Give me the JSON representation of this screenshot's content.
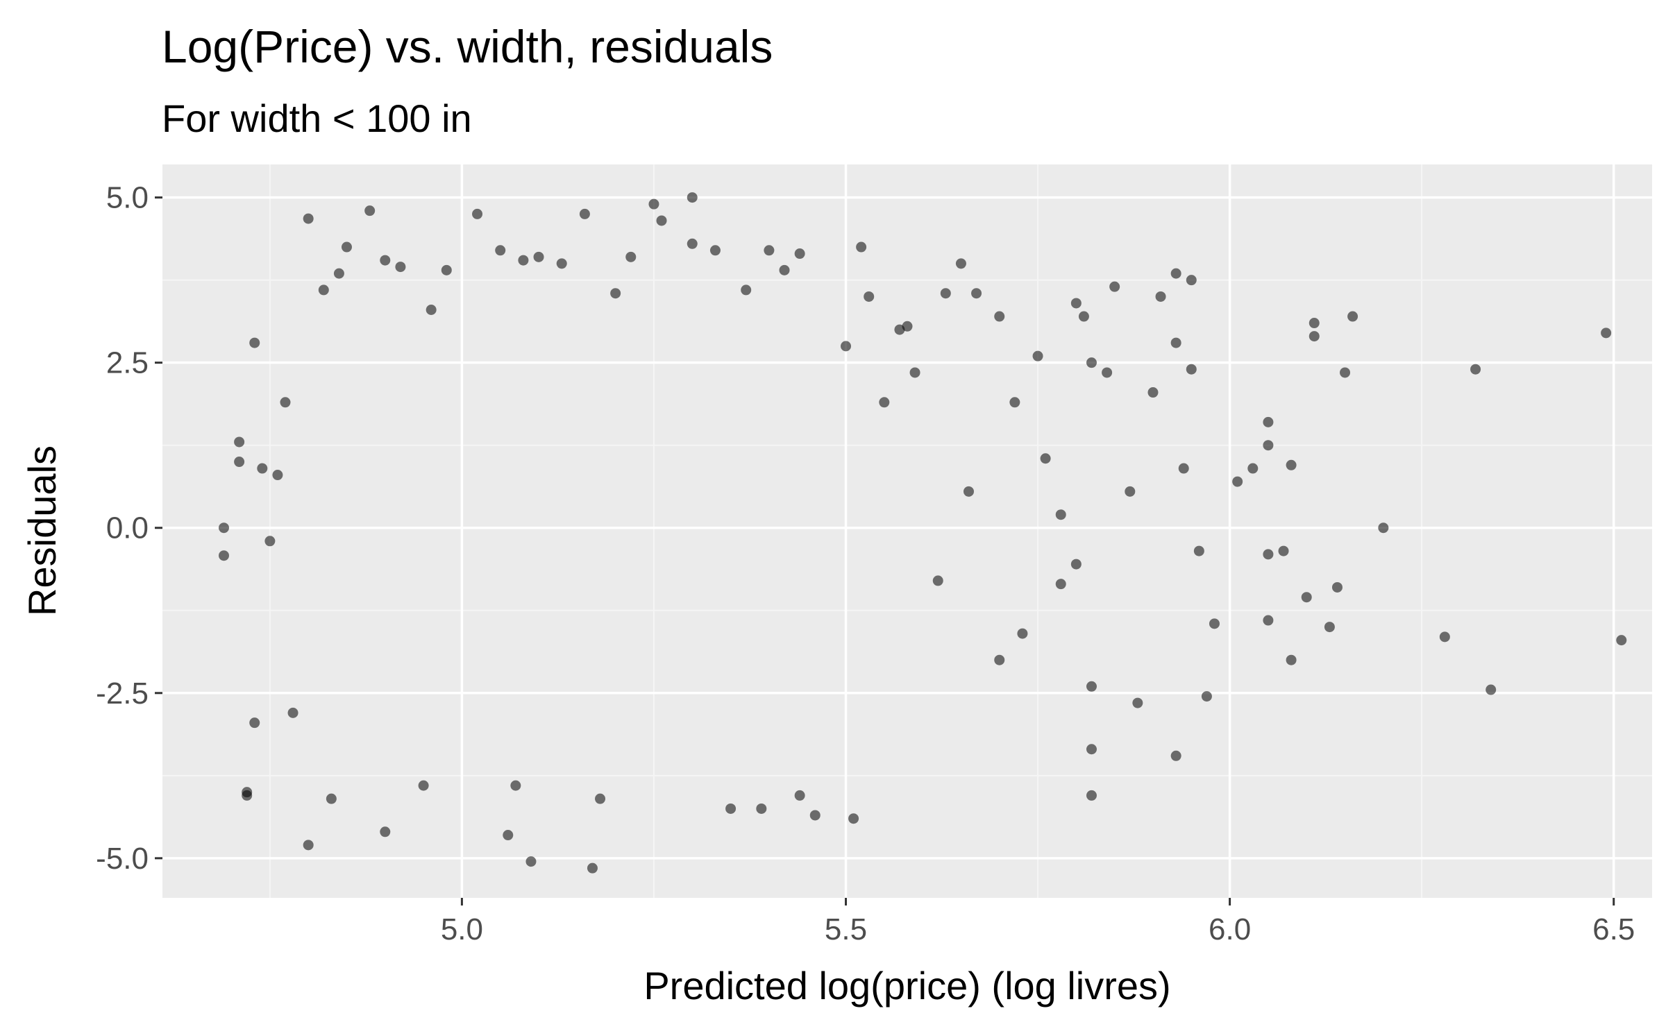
{
  "chart_data": {
    "type": "scatter",
    "title": "Log(Price) vs. width, residuals",
    "subtitle": "For width < 100 in",
    "xlabel": "Predicted log(price) (log livres)",
    "ylabel": "Residuals",
    "xlim": [
      4.61,
      6.55
    ],
    "ylim": [
      -5.6,
      5.5
    ],
    "x_ticks": [
      5.0,
      5.5,
      6.0,
      6.5
    ],
    "x_tick_labels": [
      "5.0",
      "5.5",
      "6.0",
      "6.5"
    ],
    "y_ticks": [
      -5.0,
      -2.5,
      0.0,
      2.5,
      5.0
    ],
    "y_tick_labels": [
      "-5.0",
      "-2.5",
      "0.0",
      "2.5",
      "5.0"
    ],
    "grid": true,
    "legend": "none",
    "colors": {
      "panel_background": "#ebebeb",
      "grid_major": "#ffffff",
      "grid_minor": "#f5f5f5",
      "point": "#000000",
      "point_opacity": 0.55,
      "tick_label": "#4d4d4d",
      "text": "#000000"
    },
    "series": [
      {
        "values": [
          [
            4.69,
            0.0
          ],
          [
            4.69,
            -0.42
          ],
          [
            4.71,
            1.0
          ],
          [
            4.71,
            1.3
          ],
          [
            4.72,
            -4.0
          ],
          [
            4.72,
            -4.05
          ],
          [
            4.73,
            -2.95
          ],
          [
            4.73,
            2.8
          ],
          [
            4.74,
            0.9
          ],
          [
            4.75,
            -0.2
          ],
          [
            4.76,
            0.8
          ],
          [
            4.77,
            1.9
          ],
          [
            4.78,
            -2.8
          ],
          [
            4.8,
            4.68
          ],
          [
            4.8,
            -4.8
          ],
          [
            4.83,
            -4.1
          ],
          [
            4.82,
            3.6
          ],
          [
            4.84,
            3.85
          ],
          [
            4.85,
            4.25
          ],
          [
            4.88,
            4.8
          ],
          [
            4.9,
            4.05
          ],
          [
            4.9,
            -4.6
          ],
          [
            4.92,
            3.95
          ],
          [
            4.95,
            -3.9
          ],
          [
            4.96,
            3.3
          ],
          [
            4.98,
            3.9
          ],
          [
            5.02,
            4.75
          ],
          [
            5.05,
            4.2
          ],
          [
            5.06,
            -4.65
          ],
          [
            5.07,
            -3.9
          ],
          [
            5.08,
            4.05
          ],
          [
            5.1,
            4.1
          ],
          [
            5.09,
            -5.05
          ],
          [
            5.13,
            4.0
          ],
          [
            5.16,
            4.75
          ],
          [
            5.17,
            -5.15
          ],
          [
            5.18,
            -4.1
          ],
          [
            5.2,
            3.55
          ],
          [
            5.22,
            4.1
          ],
          [
            5.25,
            4.9
          ],
          [
            5.26,
            4.65
          ],
          [
            5.3,
            5.0
          ],
          [
            5.3,
            4.3
          ],
          [
            5.33,
            4.2
          ],
          [
            5.35,
            -4.25
          ],
          [
            5.37,
            3.6
          ],
          [
            5.39,
            -4.25
          ],
          [
            5.4,
            4.2
          ],
          [
            5.42,
            3.9
          ],
          [
            5.44,
            4.15
          ],
          [
            5.44,
            -4.05
          ],
          [
            5.46,
            -4.35
          ],
          [
            5.5,
            2.75
          ],
          [
            5.51,
            -4.4
          ],
          [
            5.52,
            4.25
          ],
          [
            5.53,
            3.5
          ],
          [
            5.55,
            1.9
          ],
          [
            5.57,
            3.0
          ],
          [
            5.58,
            3.05
          ],
          [
            5.59,
            2.35
          ],
          [
            5.62,
            -0.8
          ],
          [
            5.63,
            3.55
          ],
          [
            5.65,
            4.0
          ],
          [
            5.66,
            0.55
          ],
          [
            5.67,
            3.55
          ],
          [
            5.7,
            3.2
          ],
          [
            5.7,
            -2.0
          ],
          [
            5.72,
            1.9
          ],
          [
            5.73,
            -1.6
          ],
          [
            5.75,
            2.6
          ],
          [
            5.76,
            1.05
          ],
          [
            5.78,
            -0.85
          ],
          [
            5.78,
            0.2
          ],
          [
            5.8,
            3.4
          ],
          [
            5.8,
            -0.55
          ],
          [
            5.81,
            3.2
          ],
          [
            5.82,
            -4.05
          ],
          [
            5.82,
            -3.35
          ],
          [
            5.82,
            -2.4
          ],
          [
            5.82,
            2.5
          ],
          [
            5.84,
            2.35
          ],
          [
            5.85,
            3.65
          ],
          [
            5.87,
            0.55
          ],
          [
            5.88,
            -2.65
          ],
          [
            5.9,
            2.05
          ],
          [
            5.91,
            3.5
          ],
          [
            5.93,
            3.85
          ],
          [
            5.93,
            2.8
          ],
          [
            5.93,
            -3.45
          ],
          [
            5.94,
            0.9
          ],
          [
            5.95,
            3.75
          ],
          [
            5.95,
            2.4
          ],
          [
            5.96,
            -0.35
          ],
          [
            5.97,
            -2.55
          ],
          [
            5.98,
            -1.45
          ],
          [
            6.01,
            0.7
          ],
          [
            6.03,
            0.9
          ],
          [
            6.05,
            1.6
          ],
          [
            6.05,
            1.25
          ],
          [
            6.05,
            -1.4
          ],
          [
            6.05,
            -0.4
          ],
          [
            6.07,
            -0.35
          ],
          [
            6.08,
            -2.0
          ],
          [
            6.08,
            0.95
          ],
          [
            6.1,
            -1.05
          ],
          [
            6.11,
            3.1
          ],
          [
            6.11,
            2.9
          ],
          [
            6.13,
            -1.5
          ],
          [
            6.14,
            -0.9
          ],
          [
            6.15,
            2.35
          ],
          [
            6.16,
            3.2
          ],
          [
            6.2,
            0.0
          ],
          [
            6.28,
            -1.65
          ],
          [
            6.32,
            2.4
          ],
          [
            6.34,
            -2.45
          ],
          [
            6.49,
            2.95
          ],
          [
            6.51,
            -1.7
          ]
        ]
      }
    ]
  }
}
